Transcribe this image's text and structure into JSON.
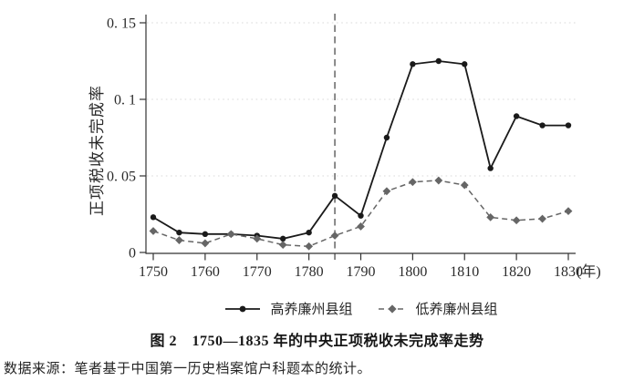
{
  "figure": {
    "caption": "图 2　1750—1835 年的中央正项税收未完成率走势",
    "source_note": "数据来源：笔者基于中国第一历史档案馆户科题本的统计。"
  },
  "chart_data": {
    "type": "line",
    "title": "图 2 1750—1835 年的中央正项税收未完成率走势",
    "ylabel": "正项税收未完成率",
    "xlabel": "年",
    "x_unit_label": "(年)",
    "ylim": [
      0,
      0.15
    ],
    "yticks": [
      0,
      0.05,
      0.1,
      0.15
    ],
    "ytick_labels": [
      "0",
      "0. 05",
      "0. 1",
      "0. 15"
    ],
    "xticks": [
      1750,
      1760,
      1770,
      1780,
      1790,
      1800,
      1810,
      1820,
      1830
    ],
    "x": [
      1750,
      1755,
      1760,
      1765,
      1770,
      1775,
      1780,
      1785,
      1790,
      1795,
      1800,
      1805,
      1810,
      1815,
      1820,
      1825,
      1830
    ],
    "series": [
      {
        "name": "高养廉州县组",
        "line_style": "solid",
        "marker": "circle",
        "color": "#1a1a1a",
        "values": [
          0.023,
          0.013,
          0.012,
          0.012,
          0.011,
          0.009,
          0.013,
          0.037,
          0.024,
          0.075,
          0.123,
          0.125,
          0.123,
          0.055,
          0.089,
          0.083,
          0.083
        ]
      },
      {
        "name": "低养廉州县组",
        "line_style": "dashed",
        "marker": "diamond",
        "color": "#666666",
        "values": [
          0.014,
          0.008,
          0.006,
          0.012,
          0.009,
          0.005,
          0.004,
          0.011,
          0.017,
          0.04,
          0.046,
          0.047,
          0.044,
          0.023,
          0.021,
          0.022,
          0.027
        ]
      }
    ],
    "reference_line": {
      "orientation": "vertical",
      "x": 1785,
      "style": "dashed",
      "color": "#4d4d4d"
    },
    "grid": {
      "horizontal": true,
      "style": "dotted",
      "color": "#d9d9d9"
    },
    "axis_color": "#333333",
    "legend_position": "bottom-center"
  }
}
